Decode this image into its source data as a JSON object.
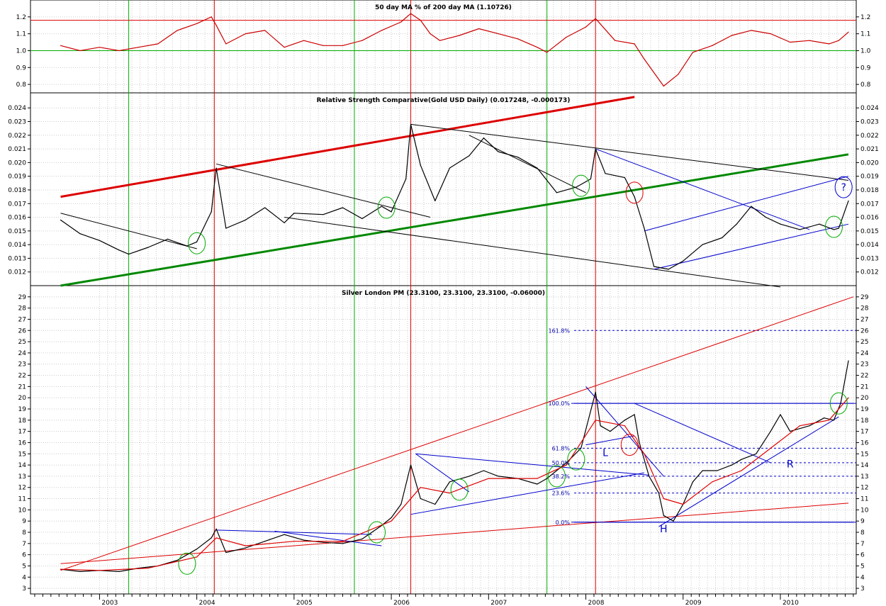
{
  "chart_data": [
    {
      "type": "line",
      "title": "50 day MA % of 200 day MA (1.10726)",
      "ylim": [
        0.75,
        1.3
      ],
      "yticks": [
        0.8,
        0.9,
        1.0,
        1.1,
        1.2
      ],
      "ytick_labels": [
        "0.8",
        "0.9",
        "1.0",
        "1.1",
        "1.2"
      ],
      "hlines": [
        {
          "y": 1.0,
          "color": "#00aa00"
        },
        {
          "y": 1.18,
          "color": "#dd0000"
        }
      ],
      "series": [
        {
          "color": "#cc0000",
          "x": [
            2002.6,
            2002.8,
            2003.0,
            2003.2,
            2003.4,
            2003.6,
            2003.8,
            2004.0,
            2004.15,
            2004.2,
            2004.3,
            2004.5,
            2004.7,
            2004.9,
            2005.1,
            2005.3,
            2005.5,
            2005.7,
            2005.9,
            2006.1,
            2006.2,
            2006.3,
            2006.4,
            2006.5,
            2006.7,
            2006.9,
            2007.1,
            2007.3,
            2007.5,
            2007.6,
            2007.8,
            2008.0,
            2008.1,
            2008.3,
            2008.5,
            2008.6,
            2008.8,
            2008.95,
            2009.1,
            2009.3,
            2009.5,
            2009.7,
            2009.9,
            2010.1,
            2010.3,
            2010.5,
            2010.6,
            2010.7
          ],
          "y": [
            1.03,
            1.0,
            1.02,
            1.0,
            1.02,
            1.04,
            1.12,
            1.16,
            1.2,
            1.15,
            1.04,
            1.1,
            1.12,
            1.02,
            1.06,
            1.03,
            1.03,
            1.06,
            1.12,
            1.17,
            1.22,
            1.18,
            1.1,
            1.06,
            1.09,
            1.13,
            1.1,
            1.07,
            1.02,
            0.99,
            1.08,
            1.14,
            1.19,
            1.06,
            1.04,
            0.95,
            0.79,
            0.86,
            0.99,
            1.03,
            1.09,
            1.12,
            1.1,
            1.05,
            1.06,
            1.04,
            1.06,
            1.11
          ]
        }
      ]
    },
    {
      "type": "line",
      "title": "Relative Strength Comparative(Gold USD Daily) (0.017248, -0.000173)",
      "ylim": [
        0.011,
        0.0251
      ],
      "yticks": [
        0.012,
        0.013,
        0.014,
        0.015,
        0.016,
        0.017,
        0.018,
        0.019,
        0.02,
        0.021,
        0.022,
        0.023,
        0.024
      ],
      "ytick_labels": [
        "0.012",
        "0.013",
        "0.014",
        "0.015",
        "0.016",
        "0.017",
        "0.018",
        "0.019",
        "0.020",
        "0.021",
        "0.022",
        "0.023",
        "0.024"
      ],
      "series": [
        {
          "color": "#000000",
          "x": [
            2002.6,
            2002.8,
            2003.0,
            2003.2,
            2003.3,
            2003.5,
            2003.7,
            2003.9,
            2004.0,
            2004.15,
            2004.2,
            2004.3,
            2004.5,
            2004.7,
            2004.9,
            2005.0,
            2005.3,
            2005.5,
            2005.7,
            2005.9,
            2006.0,
            2006.15,
            2006.2,
            2006.3,
            2006.45,
            2006.6,
            2006.8,
            2006.95,
            2007.1,
            2007.3,
            2007.5,
            2007.7,
            2007.9,
            2008.05,
            2008.1,
            2008.2,
            2008.4,
            2008.5,
            2008.6,
            2008.7,
            2008.85,
            2009.0,
            2009.2,
            2009.4,
            2009.55,
            2009.7,
            2009.85,
            2010.0,
            2010.2,
            2010.4,
            2010.55,
            2010.6,
            2010.7
          ],
          "y": [
            0.0158,
            0.0148,
            0.0143,
            0.0136,
            0.0133,
            0.0138,
            0.0144,
            0.0139,
            0.0142,
            0.0164,
            0.0196,
            0.0152,
            0.0158,
            0.0167,
            0.0156,
            0.0163,
            0.0162,
            0.0167,
            0.0159,
            0.0168,
            0.0164,
            0.0188,
            0.0228,
            0.0198,
            0.0172,
            0.0196,
            0.0205,
            0.0218,
            0.0208,
            0.0204,
            0.0196,
            0.0178,
            0.0182,
            0.0188,
            0.021,
            0.0192,
            0.0189,
            0.0175,
            0.0152,
            0.0124,
            0.0122,
            0.0128,
            0.014,
            0.0145,
            0.0155,
            0.0168,
            0.016,
            0.0155,
            0.0151,
            0.0155,
            0.0151,
            0.0152,
            0.0172
          ]
        }
      ],
      "trendlines": [
        {
          "color": "#dd0000",
          "width": 3,
          "x": [
            2002.6,
            2008.5
          ],
          "y": [
            0.0175,
            0.0248
          ]
        },
        {
          "color": "#008800",
          "width": 3,
          "x": [
            2002.6,
            2010.7
          ],
          "y": [
            0.011,
            0.0206
          ]
        },
        {
          "color": "#000000",
          "width": 1,
          "x": [
            2002.6,
            2004.0
          ],
          "y": [
            0.0163,
            0.0137
          ]
        },
        {
          "color": "#000000",
          "width": 1,
          "x": [
            2004.2,
            2006.4
          ],
          "y": [
            0.0199,
            0.016
          ]
        },
        {
          "color": "#000000",
          "width": 1,
          "x": [
            2006.2,
            2010.7
          ],
          "y": [
            0.0228,
            0.0187
          ]
        },
        {
          "color": "#000000",
          "width": 1,
          "x": [
            2004.9,
            2010.0
          ],
          "y": [
            0.016,
            0.0109
          ]
        },
        {
          "color": "#000000",
          "width": 1,
          "x": [
            2006.8,
            2008.0
          ],
          "y": [
            0.022,
            0.0178
          ]
        },
        {
          "color": "#0000cc",
          "width": 1,
          "x": [
            2008.1,
            2010.3
          ],
          "y": [
            0.021,
            0.0151
          ]
        },
        {
          "color": "#0000cc",
          "width": 1,
          "x": [
            2008.6,
            2010.7
          ],
          "y": [
            0.015,
            0.019
          ]
        },
        {
          "color": "#0000cc",
          "width": 1,
          "x": [
            2008.7,
            2010.7
          ],
          "y": [
            0.0122,
            0.0155
          ]
        }
      ],
      "ellipses": [
        {
          "x": 2004.0,
          "y": 0.0141,
          "color": "#00aa00"
        },
        {
          "x": 2005.95,
          "y": 0.0167,
          "color": "#00aa00"
        },
        {
          "x": 2007.95,
          "y": 0.0183,
          "color": "#00aa00"
        },
        {
          "x": 2008.5,
          "y": 0.0178,
          "color": "#dd0000"
        },
        {
          "x": 2010.55,
          "y": 0.0153,
          "color": "#00aa00"
        },
        {
          "x": 2010.65,
          "y": 0.0182,
          "color": "#0000cc",
          "label": "?"
        }
      ]
    },
    {
      "type": "line",
      "title": "Silver London PM (23.3100, 23.3100, 23.3100, -0.06000)",
      "xlabel": "",
      "ylim": [
        2.5,
        30
      ],
      "yticks": [
        3,
        4,
        5,
        6,
        7,
        8,
        9,
        10,
        11,
        12,
        13,
        14,
        15,
        16,
        17,
        18,
        19,
        20,
        21,
        22,
        23,
        24,
        25,
        26,
        27,
        28,
        29
      ],
      "ytick_labels": [
        "3",
        "4",
        "5",
        "6",
        "7",
        "8",
        "9",
        "10",
        "11",
        "12",
        "13",
        "14",
        "15",
        "16",
        "17",
        "18",
        "19",
        "20",
        "21",
        "22",
        "23",
        "24",
        "25",
        "26",
        "27",
        "28",
        "29"
      ],
      "x_year_labels": [
        "2003",
        "2004",
        "2005",
        "2006",
        "2007",
        "2008",
        "2009",
        "2010"
      ],
      "series": [
        {
          "color": "#000000",
          "x": [
            2002.6,
            2002.8,
            2003.0,
            2003.2,
            2003.4,
            2003.6,
            2003.8,
            2004.0,
            2004.15,
            2004.2,
            2004.3,
            2004.5,
            2004.7,
            2004.9,
            2005.1,
            2005.3,
            2005.5,
            2005.7,
            2005.9,
            2006.0,
            2006.1,
            2006.2,
            2006.3,
            2006.45,
            2006.6,
            2006.8,
            2006.95,
            2007.1,
            2007.3,
            2007.5,
            2007.6,
            2007.8,
            2007.95,
            2008.1,
            2008.15,
            2008.25,
            2008.4,
            2008.5,
            2008.55,
            2008.65,
            2008.75,
            2008.8,
            2008.9,
            2009.0,
            2009.1,
            2009.2,
            2009.35,
            2009.5,
            2009.6,
            2009.75,
            2009.9,
            2010.0,
            2010.1,
            2010.3,
            2010.45,
            2010.55,
            2010.62,
            2010.7
          ],
          "y": [
            4.7,
            4.5,
            4.6,
            4.5,
            4.8,
            5.0,
            5.5,
            6.5,
            7.5,
            8.3,
            6.2,
            6.6,
            7.2,
            7.8,
            7.3,
            7.1,
            7.0,
            7.4,
            8.6,
            9.3,
            10.5,
            14.0,
            11.0,
            10.5,
            12.5,
            13.0,
            13.5,
            13.0,
            12.8,
            12.3,
            12.8,
            14.2,
            15.5,
            20.5,
            17.5,
            17.0,
            18.0,
            18.5,
            16.0,
            13.0,
            11.5,
            9.5,
            9.0,
            10.5,
            12.5,
            13.5,
            13.5,
            14.0,
            14.5,
            15.0,
            17.0,
            18.5,
            17.0,
            17.5,
            18.2,
            18.0,
            19.5,
            23.3
          ]
        },
        {
          "color": "#dd0000",
          "x": [
            2002.6,
            2003.0,
            2003.5,
            2004.0,
            2004.2,
            2004.5,
            2005.0,
            2005.5,
            2006.0,
            2006.3,
            2006.6,
            2007.0,
            2007.5,
            2007.8,
            2008.1,
            2008.4,
            2008.6,
            2008.8,
            2009.0,
            2009.3,
            2009.6,
            2009.9,
            2010.2,
            2010.5,
            2010.7
          ],
          "y": [
            4.7,
            4.6,
            4.8,
            5.8,
            7.5,
            6.8,
            7.2,
            7.2,
            9.0,
            12.0,
            11.5,
            12.8,
            12.8,
            14.0,
            18.0,
            17.5,
            15.0,
            11.0,
            10.5,
            12.5,
            13.5,
            15.5,
            17.5,
            18.0,
            20.0
          ]
        }
      ],
      "trendlines": [
        {
          "color": "#dd0000",
          "width": 1,
          "x": [
            2002.6,
            2010.75
          ],
          "y": [
            4.6,
            29.0
          ]
        },
        {
          "color": "#dd0000",
          "width": 1,
          "x": [
            2002.6,
            2010.7
          ],
          "y": [
            5.2,
            10.6
          ]
        },
        {
          "color": "#0000cc",
          "width": 1,
          "x": [
            2004.2,
            2005.8
          ],
          "y": [
            8.2,
            7.8
          ]
        },
        {
          "color": "#0000cc",
          "width": 1,
          "x": [
            2004.8,
            2005.9
          ],
          "y": [
            8.1,
            6.8
          ]
        },
        {
          "color": "#0000cc",
          "width": 1,
          "x": [
            2006.25,
            2008.65
          ],
          "y": [
            15.0,
            13.1
          ]
        },
        {
          "color": "#0000cc",
          "width": 1,
          "x": [
            2006.2,
            2008.6
          ],
          "y": [
            9.6,
            13.3
          ]
        },
        {
          "color": "#0000cc",
          "width": 1,
          "x": [
            2006.25,
            2006.8
          ],
          "y": [
            15.0,
            11.6
          ]
        },
        {
          "color": "#0000cc",
          "width": 1,
          "x": [
            2008.0,
            2008.8
          ],
          "y": [
            21.0,
            13.0
          ]
        },
        {
          "color": "#0000cc",
          "width": 1,
          "x": [
            2008.5,
            2009.9
          ],
          "y": [
            19.5,
            14.2
          ]
        },
        {
          "color": "#0000cc",
          "width": 1,
          "x": [
            2008.75,
            2010.6
          ],
          "y": [
            8.5,
            18.3
          ]
        },
        {
          "color": "#0000cc",
          "width": 1,
          "x": [
            2008.0,
            2008.5
          ],
          "y": [
            15.8,
            16.6
          ]
        },
        {
          "color": "#0000cc",
          "width": 1,
          "x": [
            2007.85,
            2010.75
          ],
          "y": [
            8.9,
            8.9
          ]
        },
        {
          "color": "#0000cc",
          "width": 1,
          "x": [
            2007.85,
            2010.75
          ],
          "y": [
            19.5,
            19.5
          ]
        }
      ],
      "fib_levels": [
        {
          "label": "0.0%",
          "y": 8.9,
          "dashed": false
        },
        {
          "label": "23.6%",
          "y": 11.5,
          "dashed": true
        },
        {
          "label": "38.2%",
          "y": 13.0,
          "dashed": true
        },
        {
          "label": "50.0%",
          "y": 14.2,
          "dashed": true
        },
        {
          "label": "61.8%",
          "y": 15.5,
          "dashed": true
        },
        {
          "label": "100.0%",
          "y": 19.5,
          "dashed": false
        },
        {
          "label": "161.8%",
          "y": 26.0,
          "dashed": true
        }
      ],
      "annotations": [
        {
          "text": "L",
          "x": 2008.2,
          "y": 14.8
        },
        {
          "text": "H",
          "x": 2008.8,
          "y": 8.0
        },
        {
          "text": "R",
          "x": 2010.1,
          "y": 13.8
        }
      ],
      "ellipses": [
        {
          "x": 2003.9,
          "y": 5.2,
          "color": "#00aa00"
        },
        {
          "x": 2005.85,
          "y": 8.0,
          "color": "#00aa00"
        },
        {
          "x": 2006.7,
          "y": 11.8,
          "color": "#00aa00"
        },
        {
          "x": 2007.7,
          "y": 13.0,
          "color": "#00aa00"
        },
        {
          "x": 2007.9,
          "y": 14.5,
          "color": "#00aa00"
        },
        {
          "x": 2008.45,
          "y": 15.8,
          "color": "#dd0000"
        },
        {
          "x": 2010.6,
          "y": 19.5,
          "color": "#00aa00"
        }
      ]
    }
  ],
  "vertical_markers": [
    {
      "x": 2003.3,
      "color": "#00aa00"
    },
    {
      "x": 2004.18,
      "color": "#dd0000"
    },
    {
      "x": 2005.62,
      "color": "#00aa00"
    },
    {
      "x": 2006.2,
      "color": "#dd0000"
    },
    {
      "x": 2007.6,
      "color": "#00aa00"
    },
    {
      "x": 2008.1,
      "color": "#dd0000"
    }
  ]
}
